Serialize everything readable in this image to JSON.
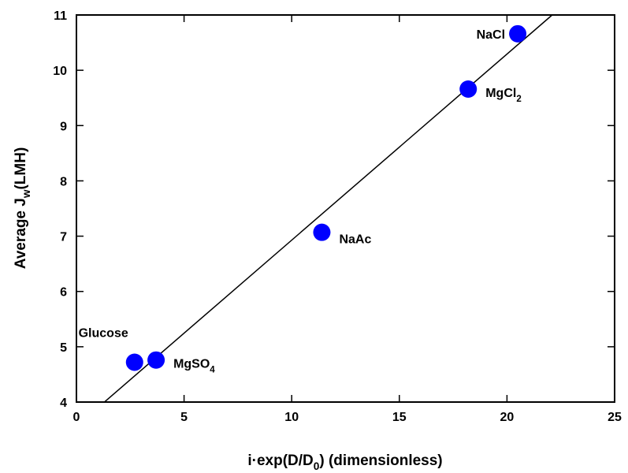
{
  "chart_data": {
    "type": "scatter",
    "title": "",
    "xlabel": "i·exp(D/D₀) (dimensionless)",
    "ylabel": "Average J_w(LMH)",
    "xlim": [
      0,
      25
    ],
    "ylim": [
      4,
      11
    ],
    "x_ticks": [
      0,
      5,
      10,
      15,
      20,
      25
    ],
    "y_ticks": [
      4,
      5,
      6,
      7,
      8,
      9,
      10,
      11
    ],
    "grid": false,
    "legend": "none",
    "point_color": "#0000ff",
    "series": [
      {
        "points": [
          {
            "label": "Glucose",
            "x": 2.7,
            "y": 4.72
          },
          {
            "label": "MgSO₄",
            "x": 3.7,
            "y": 4.76
          },
          {
            "label": "NaAc",
            "x": 11.4,
            "y": 7.07
          },
          {
            "label": "MgCl₂",
            "x": 18.2,
            "y": 9.66
          },
          {
            "label": "NaCl",
            "x": 20.5,
            "y": 10.66
          }
        ]
      }
    ],
    "fit_line": {
      "x": [
        1.3,
        22.1
      ],
      "y": [
        4.0,
        11.0
      ]
    }
  }
}
